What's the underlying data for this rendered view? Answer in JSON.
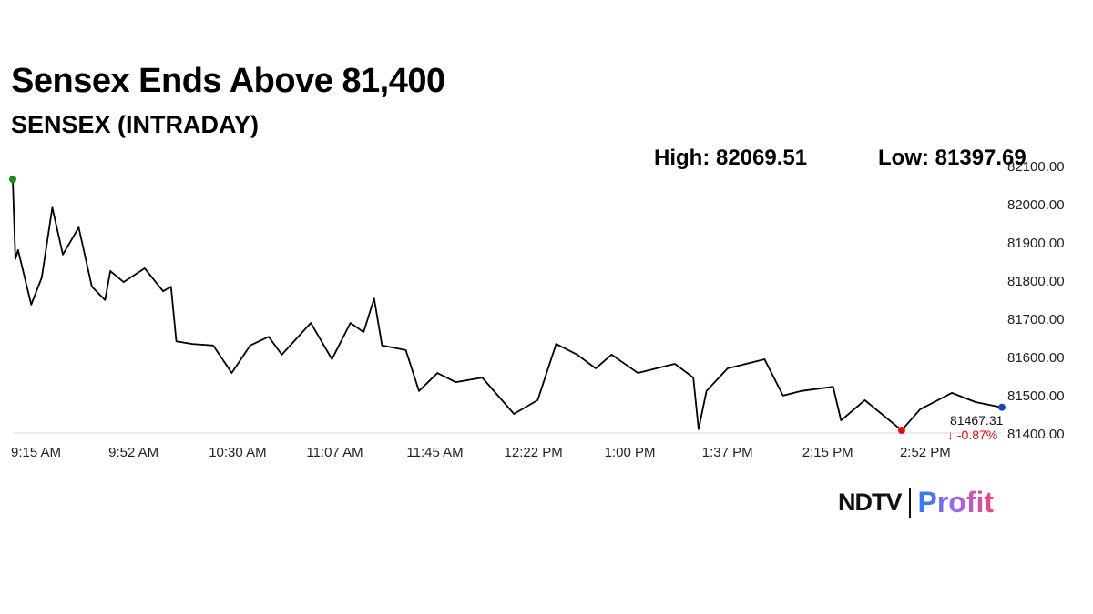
{
  "header": {
    "title": "Sensex Ends Above 81,400",
    "subtitle": "SENSEX (INTRADAY)",
    "high": "High: 82069.51",
    "low": "Low: 81397.69"
  },
  "logo": {
    "brand": "NDTV",
    "product": "Profit"
  },
  "chart_data": {
    "type": "line",
    "title": "Sensex Ends Above 81,400",
    "subtitle": "SENSEX (INTRADAY)",
    "xlim": [
      "09:15",
      "15:30"
    ],
    "ylim": [
      81400,
      82100
    ],
    "yticks": [
      81400,
      81500,
      81600,
      81700,
      81800,
      81900,
      82000,
      82100
    ],
    "ytick_labels": [
      "81400.00",
      "81500.00",
      "81600.00",
      "81700.00",
      "81800.00",
      "81900.00",
      "82000.00",
      "82100.00"
    ],
    "xticks": [
      "09:15",
      "09:52",
      "10:30",
      "11:07",
      "11:45",
      "12:22",
      "13:00",
      "13:37",
      "14:15",
      "14:52"
    ],
    "xtick_labels": [
      "9:15 AM",
      "9:52 AM",
      "10:30 AM",
      "11:07 AM",
      "11:45 AM",
      "12:22 PM",
      "1:00 PM",
      "1:37 PM",
      "2:15 PM",
      "2:52 PM"
    ],
    "line_color": "#000000",
    "x": [
      "09:15",
      "09:16",
      "09:17",
      "09:22",
      "09:26",
      "09:30",
      "09:34",
      "09:40",
      "09:45",
      "09:50",
      "09:52",
      "09:57",
      "10:05",
      "10:12",
      "10:15",
      "10:17",
      "10:23",
      "10:31",
      "10:38",
      "10:45",
      "10:52",
      "10:57",
      "11:08",
      "11:16",
      "11:23",
      "11:28",
      "11:32",
      "11:35",
      "11:44",
      "11:49",
      "11:56",
      "12:03",
      "12:13",
      "12:25",
      "12:34",
      "12:41",
      "12:49",
      "12:56",
      "13:02",
      "13:12",
      "13:26",
      "13:33",
      "13:35",
      "13:38",
      "13:46",
      "14:00",
      "14:07",
      "14:14",
      "14:26",
      "14:29",
      "14:38",
      "14:52",
      "14:59",
      "15:11",
      "15:20",
      "15:30"
    ],
    "y": [
      82064,
      81855,
      81879,
      81736,
      81807,
      81990,
      81867,
      81938,
      81783,
      81748,
      81824,
      81795,
      81831,
      81771,
      81783,
      81640,
      81633,
      81629,
      81557,
      81629,
      81652,
      81605,
      81688,
      81593,
      81688,
      81664,
      81752,
      81629,
      81617,
      81510,
      81557,
      81533,
      81545,
      81450,
      81486,
      81633,
      81605,
      81569,
      81605,
      81557,
      81581,
      81545,
      81410,
      81510,
      81569,
      81593,
      81498,
      81510,
      81521,
      81433,
      81486,
      81407,
      81462,
      81505,
      81481,
      81467
    ],
    "markers": [
      {
        "label": "open",
        "x": "09:15",
        "y": 82064,
        "color": "#1a8a1a"
      },
      {
        "label": "low",
        "x": "14:52",
        "y": 81407,
        "color": "#e01010"
      },
      {
        "label": "last",
        "x": "15:30",
        "y": 81467.31,
        "color": "#1f3fbf"
      }
    ],
    "last_value": "81467.31",
    "change": "↓ -0.87%",
    "change_color": "#d01010",
    "grid": false
  }
}
